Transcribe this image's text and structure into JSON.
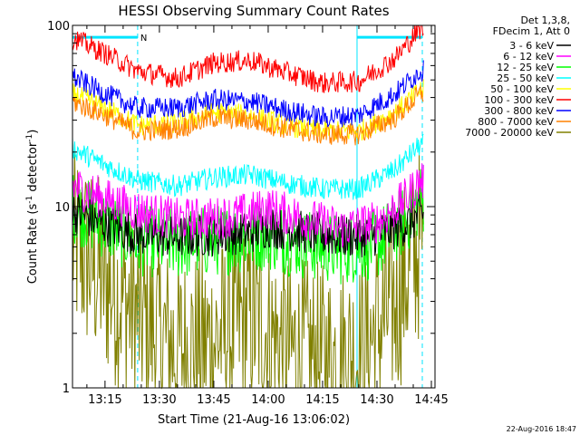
{
  "chart_data": {
    "type": "line",
    "title": "HESSI Observing Summary Count Rates",
    "xlabel": "Start Time (21-Aug-16 13:06:02)",
    "ylabel_main": "Count Rate (s",
    "ylabel_sup1": "-1",
    "ylabel_mid": " detector",
    "ylabel_sup2": "-1",
    "ylabel_end": ")",
    "yscale": "log",
    "ylim": [
      1,
      100
    ],
    "xlim": [
      "13:06:02",
      "14:46:00"
    ],
    "x_ticks": [
      "13:15",
      "13:30",
      "13:45",
      "14:00",
      "14:15",
      "14:30",
      "14:45"
    ],
    "y_ticks": [
      "1",
      "10",
      "100"
    ],
    "legend_header": [
      "Det 1,3,8,",
      "FDecim 1, Att 0"
    ],
    "legend_position": "right",
    "footer_stamp": "22-Aug-2016 18:47",
    "annotations": [
      {
        "text": "N",
        "x": "13:24:00"
      }
    ],
    "night_intervals": [
      {
        "start": "13:06:02",
        "end": "13:24:00"
      },
      {
        "start": "14:24:30",
        "end": "14:42:30"
      }
    ],
    "night_level": 86,
    "boundary_lines": [
      "13:06:02",
      "13:24:00",
      "14:24:30",
      "14:42:30"
    ],
    "series": [
      {
        "name": "3 - 6 keV",
        "color": "#000000",
        "x": [
          "13:06",
          "13:15",
          "13:24",
          "13:35",
          "13:45",
          "13:55",
          "14:00",
          "14:10",
          "14:20",
          "14:30",
          "14:38",
          "14:42"
        ],
        "values": [
          9.5,
          8.0,
          7.0,
          6.8,
          7.0,
          7.2,
          7.8,
          7.2,
          6.8,
          7.0,
          8.0,
          9.0
        ]
      },
      {
        "name": "6 - 12 keV",
        "color": "#ff00ff",
        "x": [
          "13:06",
          "13:15",
          "13:24",
          "13:35",
          "13:45",
          "13:55",
          "14:00",
          "14:10",
          "14:20",
          "14:30",
          "14:38",
          "14:42"
        ],
        "values": [
          13.0,
          11.0,
          9.5,
          8.5,
          8.6,
          9.2,
          9.8,
          8.6,
          7.6,
          8.2,
          11.0,
          14.0
        ]
      },
      {
        "name": "12 - 25 keV",
        "color": "#00ff00",
        "x": [
          "13:06",
          "13:15",
          "13:24",
          "13:35",
          "13:45",
          "13:55",
          "14:00",
          "14:10",
          "14:20",
          "14:30",
          "14:38",
          "14:42"
        ],
        "values": [
          10.0,
          8.0,
          6.5,
          6.2,
          6.5,
          6.8,
          7.0,
          6.2,
          5.8,
          6.2,
          8.5,
          11.0
        ]
      },
      {
        "name": "25 - 50 keV",
        "color": "#00ffff",
        "x": [
          "13:06",
          "13:15",
          "13:24",
          "13:35",
          "13:45",
          "13:55",
          "14:05",
          "14:15",
          "14:25",
          "14:35",
          "14:42"
        ],
        "values": [
          21.0,
          17.0,
          14.0,
          13.0,
          14.5,
          15.0,
          13.5,
          12.5,
          12.5,
          16.0,
          22.0
        ]
      },
      {
        "name": "50 - 100 keV",
        "color": "#ffff00",
        "x": [
          "13:06",
          "13:15",
          "13:24",
          "13:35",
          "13:45",
          "13:55",
          "14:05",
          "14:15",
          "14:25",
          "14:35",
          "14:42"
        ],
        "values": [
          42.0,
          35.0,
          28.0,
          29.0,
          33.0,
          32.0,
          28.0,
          26.0,
          26.0,
          33.0,
          44.0
        ]
      },
      {
        "name": "100 - 300 keV",
        "color": "#ff0000",
        "x": [
          "13:06",
          "13:15",
          "13:24",
          "13:35",
          "13:45",
          "13:55",
          "14:05",
          "14:15",
          "14:25",
          "14:35",
          "14:42"
        ],
        "values": [
          86.0,
          70.0,
          56.0,
          51.0,
          62.0,
          64.0,
          55.0,
          48.0,
          49.0,
          66.0,
          96.0
        ]
      },
      {
        "name": "300 - 800 keV",
        "color": "#0000ff",
        "x": [
          "13:06",
          "13:15",
          "13:24",
          "13:35",
          "13:45",
          "13:55",
          "14:05",
          "14:15",
          "14:25",
          "14:35",
          "14:42"
        ],
        "values": [
          52.0,
          42.0,
          35.0,
          35.0,
          39.0,
          38.0,
          34.0,
          31.0,
          32.0,
          42.0,
          56.0
        ]
      },
      {
        "name": "800 - 7000 keV",
        "color": "#ff8000",
        "x": [
          "13:06",
          "13:15",
          "13:24",
          "13:35",
          "13:45",
          "13:55",
          "14:05",
          "14:15",
          "14:25",
          "14:35",
          "14:42"
        ],
        "values": [
          38.0,
          32.0,
          26.0,
          27.0,
          31.0,
          30.0,
          27.0,
          25.0,
          25.0,
          31.0,
          42.0
        ]
      },
      {
        "name": "7000 - 20000 keV",
        "color": "#808000",
        "x": [
          "13:06",
          "13:15",
          "13:24",
          "13:35",
          "13:45",
          "13:55",
          "14:05",
          "14:15",
          "14:25",
          "14:35",
          "14:42"
        ],
        "values": [
          6.5,
          4.0,
          2.5,
          1.6,
          1.8,
          2.5,
          1.6,
          1.4,
          1.5,
          3.0,
          6.5
        ]
      }
    ]
  }
}
